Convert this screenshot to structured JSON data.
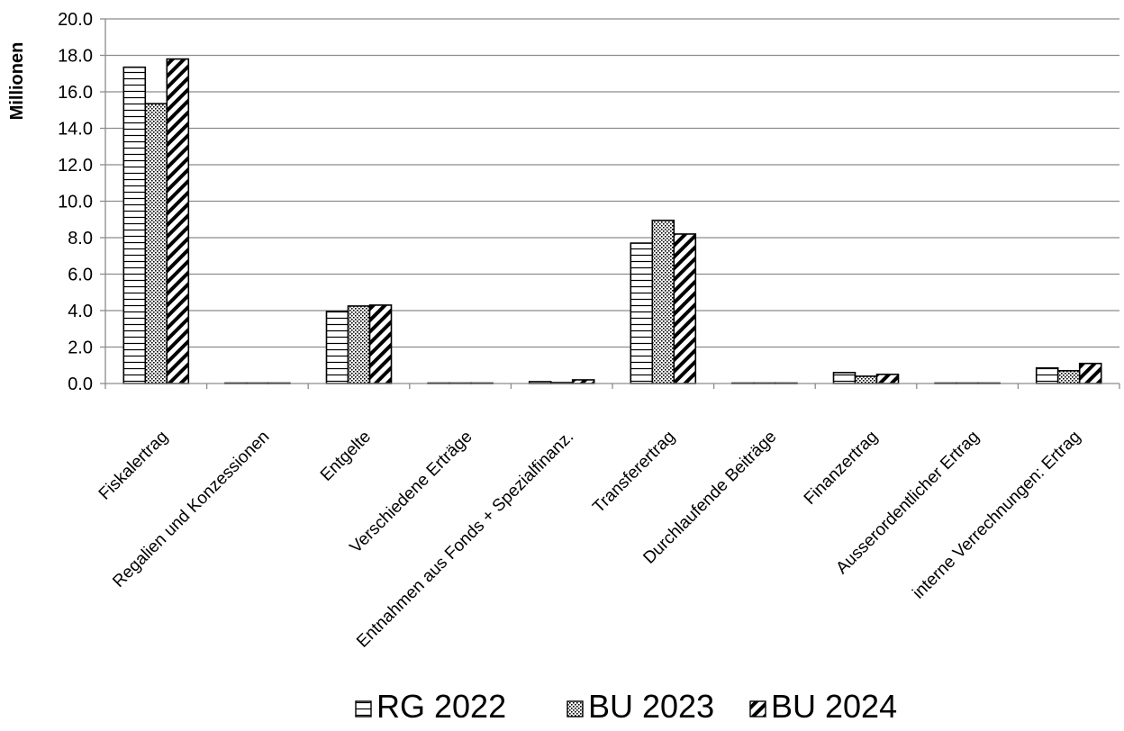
{
  "chart_data": {
    "type": "bar",
    "ylabel": "Millionen",
    "ylim": [
      0,
      20
    ],
    "yticks": [
      "0.0",
      "2.0",
      "4.0",
      "6.0",
      "8.0",
      "10.0",
      "12.0",
      "14.0",
      "16.0",
      "18.0",
      "20.0"
    ],
    "grid": true,
    "legend_position": "bottom",
    "categories": [
      "Fiskalertrag",
      "Regalien und Konzessionen",
      "Entgelte",
      "Verschiedene Erträge",
      "Entnahmen aus Fonds + Spezialfinanz.",
      "Transferertrag",
      "Durchlaufende Beiträge",
      "Finanzertrag",
      "Ausserordentlicher Ertrag",
      "interne Verrechnungen: Ertrag"
    ],
    "series": [
      {
        "name": "RG 2022",
        "pattern": "horizontal-lines",
        "values": [
          17.35,
          0.02,
          3.95,
          0.01,
          0.1,
          7.7,
          0.01,
          0.6,
          0.0,
          0.85
        ]
      },
      {
        "name": "BU 2023",
        "pattern": "dots",
        "values": [
          15.35,
          0.02,
          4.25,
          0.0,
          0.05,
          8.95,
          0.0,
          0.4,
          0.0,
          0.7
        ]
      },
      {
        "name": "BU 2024",
        "pattern": "diagonal-hatch",
        "values": [
          17.8,
          0.02,
          4.3,
          0.0,
          0.2,
          8.2,
          0.0,
          0.5,
          0.0,
          1.1
        ]
      }
    ]
  }
}
